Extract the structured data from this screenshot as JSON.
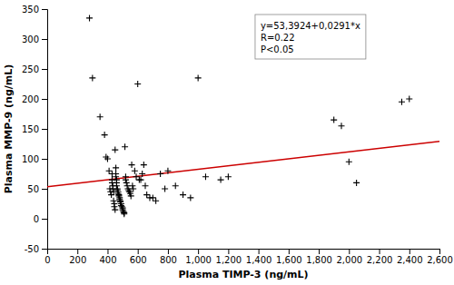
{
  "chart_data": {
    "type": "scatter",
    "xlabel": "Plasma TIMP-3 (ng/mL)",
    "ylabel": "Plasma MMP-9 (ng/mL)",
    "xlim": [
      0,
      2600
    ],
    "ylim": [
      -50,
      350
    ],
    "xticks": [
      0,
      200,
      400,
      600,
      800,
      {
        "value": 1000,
        "label": "1,000"
      },
      {
        "value": 1200,
        "label": "1,200"
      },
      {
        "value": 1400,
        "label": "1,400"
      },
      {
        "value": 1600,
        "label": "1,600"
      },
      {
        "value": 1800,
        "label": "1,800"
      },
      {
        "value": 2000,
        "label": "2,000"
      },
      {
        "value": 2200,
        "label": "2,200"
      },
      {
        "value": 2400,
        "label": "2,400"
      },
      {
        "value": 2600,
        "label": "2,600"
      }
    ],
    "yticks": [
      -50,
      0,
      50,
      100,
      150,
      200,
      250,
      300,
      350
    ],
    "annotations": [
      "y=53,3924+0,0291*x",
      "R=0.22",
      "P<0.05"
    ],
    "series": [
      {
        "type": "scatter",
        "color": "#000000",
        "marker": "plus",
        "x": [
          280,
          300,
          350,
          380,
          390,
          400,
          410,
          415,
          420,
          425,
          430,
          430,
          430,
          435,
          435,
          440,
          440,
          445,
          445,
          450,
          450,
          455,
          455,
          455,
          460,
          460,
          460,
          465,
          465,
          470,
          470,
          475,
          475,
          480,
          480,
          485,
          485,
          490,
          490,
          495,
          500,
          500,
          505,
          510,
          510,
          515,
          520,
          520,
          525,
          530,
          535,
          540,
          545,
          550,
          555,
          560,
          565,
          570,
          580,
          590,
          600,
          610,
          620,
          630,
          640,
          650,
          660,
          680,
          700,
          720,
          750,
          780,
          800,
          850,
          900,
          950,
          1000,
          1050,
          1150,
          1200,
          1900,
          1950,
          2000,
          2050,
          2350,
          2400
        ],
        "values": [
          335,
          235,
          170,
          140,
          103,
          100,
          80,
          50,
          45,
          40,
          75,
          65,
          60,
          55,
          50,
          45,
          30,
          25,
          20,
          15,
          115,
          85,
          75,
          70,
          65,
          60,
          55,
          50,
          48,
          45,
          42,
          40,
          38,
          35,
          32,
          30,
          28,
          25,
          22,
          20,
          18,
          15,
          12,
          10,
          8,
          120,
          70,
          65,
          60,
          55,
          50,
          47,
          45,
          42,
          38,
          90,
          55,
          50,
          80,
          70,
          225,
          65,
          65,
          75,
          90,
          55,
          40,
          35,
          35,
          30,
          75,
          50,
          80,
          55,
          40,
          35,
          235,
          70,
          65,
          70,
          165,
          155,
          95,
          60,
          195,
          200
        ]
      },
      {
        "type": "line",
        "color": "#cc0000",
        "line_style": "solid",
        "x": [
          0,
          2600
        ],
        "values": [
          53.3924,
          129.0524
        ]
      }
    ]
  }
}
